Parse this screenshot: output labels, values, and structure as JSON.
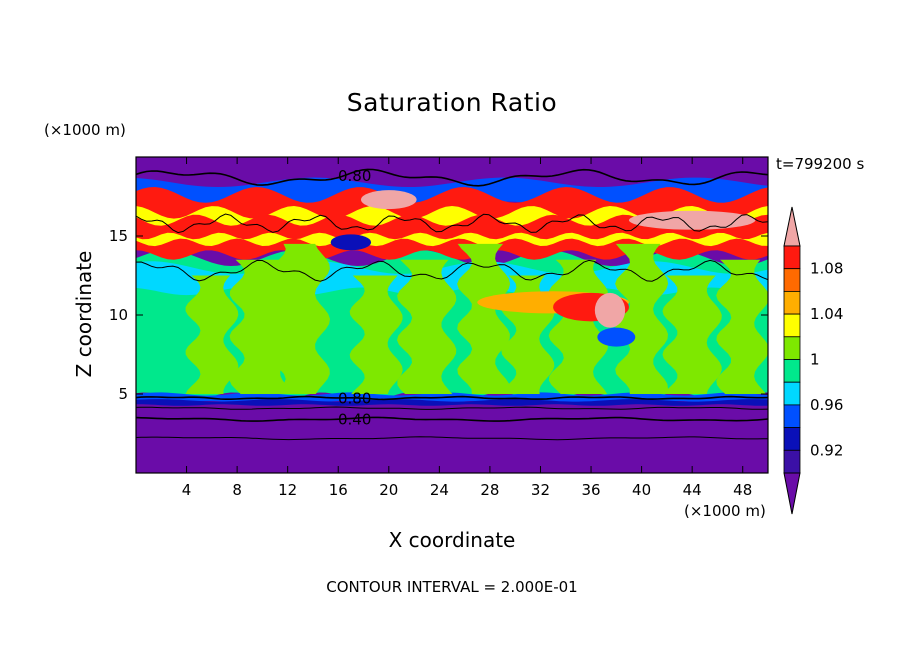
{
  "chart_data": {
    "type": "heatmap",
    "title": "Saturation Ratio",
    "xlabel": "X coordinate",
    "ylabel": "Z coordinate",
    "x_unit": "(×1000 m)",
    "y_unit": "(×1000 m)",
    "time_label": "t=799200 s",
    "footer": "CONTOUR INTERVAL = 2.000E-01",
    "xlim": [
      0,
      50
    ],
    "ylim": [
      0,
      20
    ],
    "xticks": [
      4,
      8,
      12,
      16,
      20,
      24,
      28,
      32,
      36,
      40,
      44,
      48
    ],
    "yticks": [
      5,
      10,
      15
    ],
    "contour_labels": [
      {
        "text": "0.80",
        "x": 17.3,
        "y": 18.8
      },
      {
        "text": "0.80",
        "x": 17.3,
        "y": 4.7
      },
      {
        "text": "0.40",
        "x": 17.3,
        "y": 3.4
      }
    ],
    "colorbar": {
      "labels": [
        "0.92",
        "0.96",
        "1",
        "1.04",
        "1.08"
      ],
      "levels": [
        0.9,
        0.92,
        0.94,
        0.96,
        0.98,
        1.0,
        1.02,
        1.04,
        1.06,
        1.08,
        1.1
      ],
      "colors": [
        "#6a0ca8",
        "#3b10a6",
        "#0a10b8",
        "#0050ff",
        "#00d8ff",
        "#00e88c",
        "#7ee800",
        "#ffff00",
        "#ffae00",
        "#ff6a00",
        "#ff1a10",
        "#f0a6a6"
      ],
      "extend": "both"
    }
  }
}
